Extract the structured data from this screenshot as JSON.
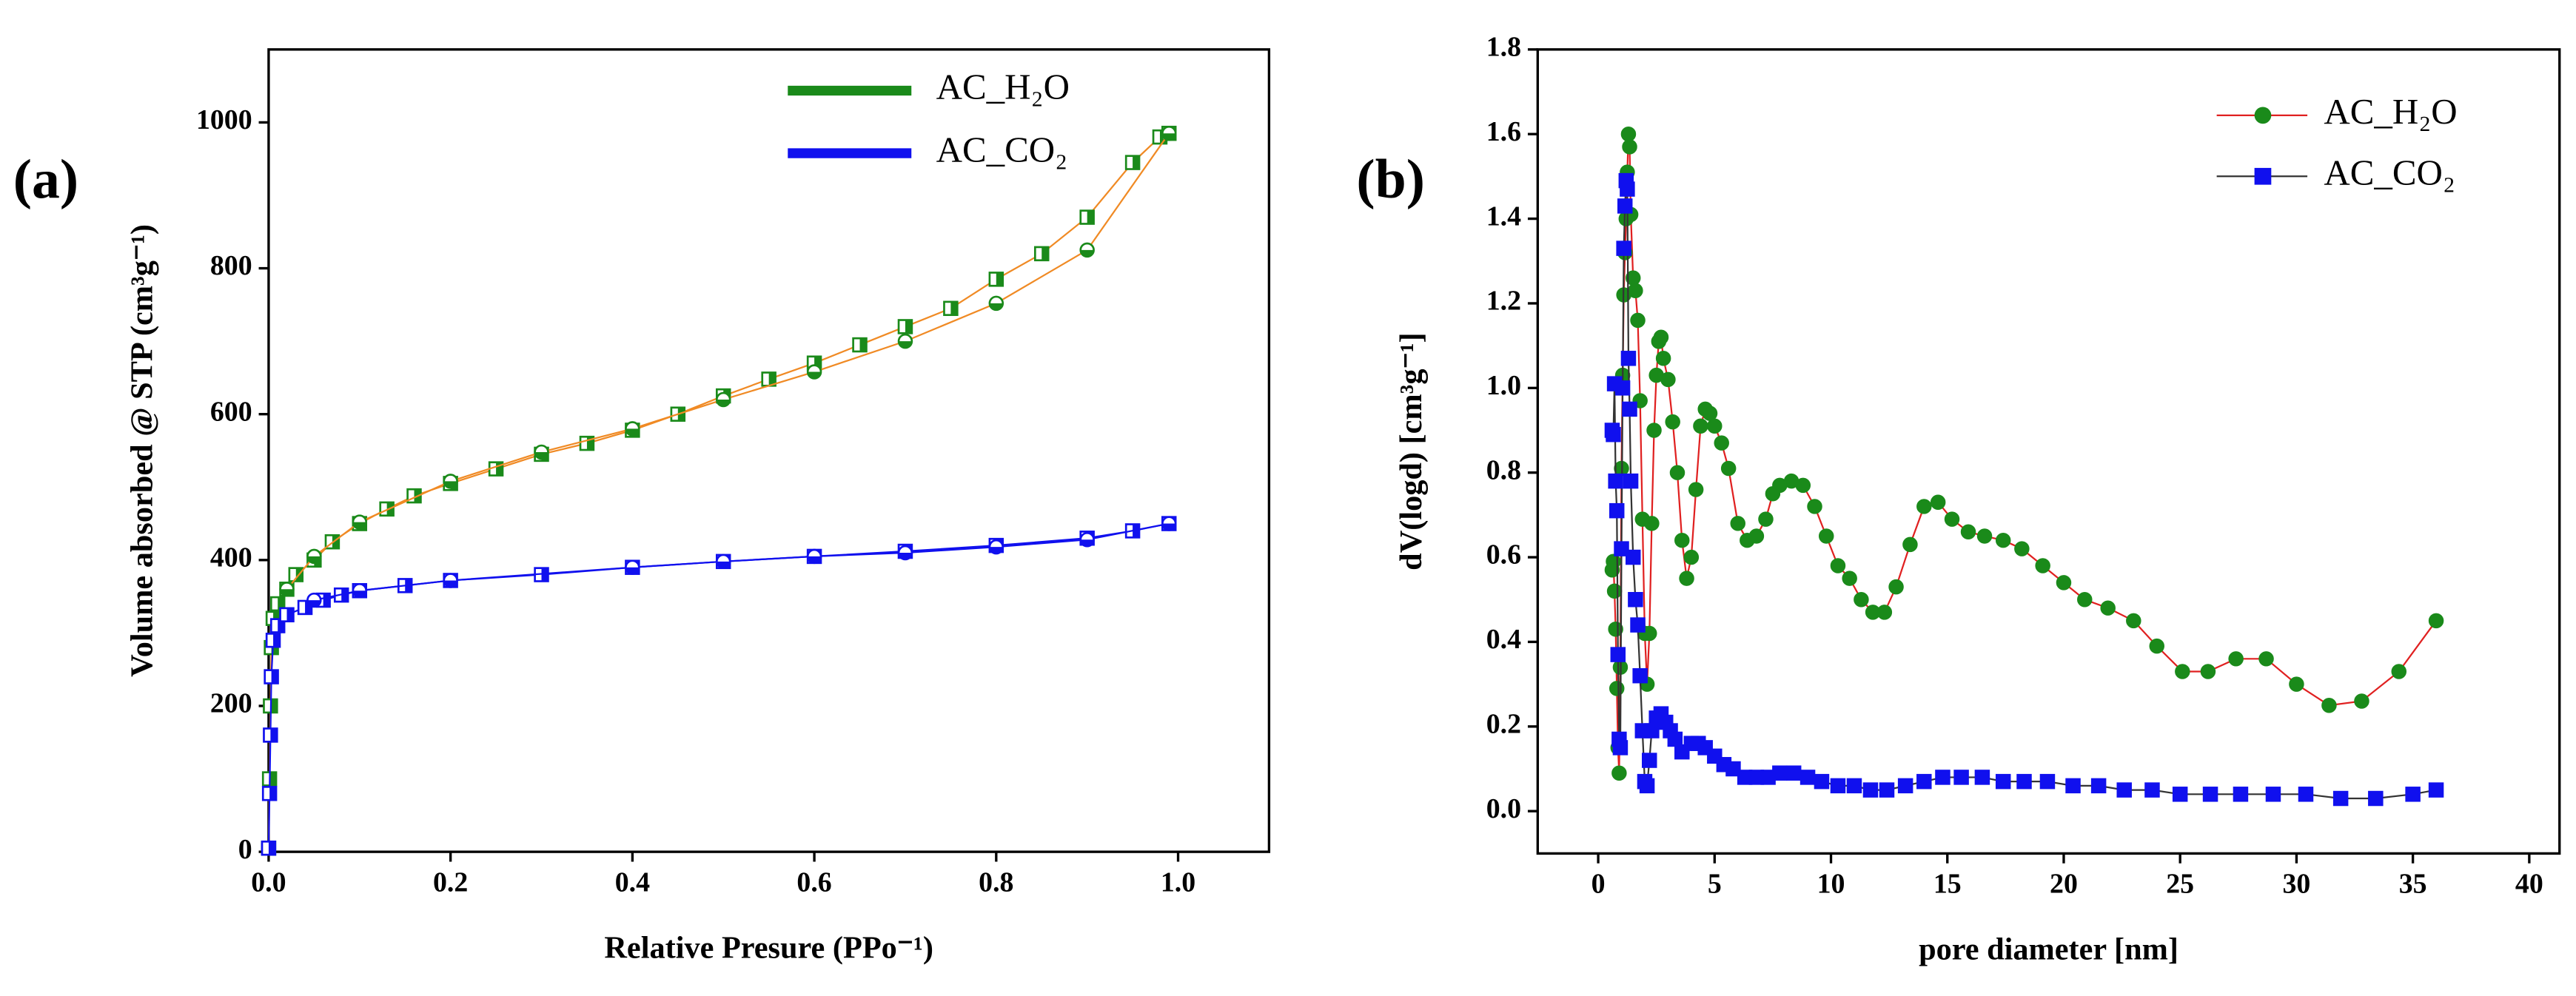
{
  "chart_data": [
    {
      "type": "scatter",
      "panel_label": "(a)",
      "xlabel": "Relative Presure (PPo⁻¹)",
      "ylabel": "Volume absorbed @ STP (cm³g⁻¹)",
      "xlim": [
        0,
        1.1
      ],
      "xticks": [
        {
          "value": 0,
          "label": "0.0"
        },
        0.2,
        0.4,
        0.6,
        0.8,
        {
          "value": 1,
          "label": "1.0"
        }
      ],
      "ylim": [
        0,
        1100
      ],
      "yticks": [
        0,
        200,
        400,
        600,
        800,
        1000
      ],
      "legend_text_color": "#ff00ff",
      "legend": "upper center",
      "series": [
        {
          "name": "AC_H₂O",
          "color": "#1a8a1a",
          "line_color": "#f08a24",
          "marker": "square",
          "x": [
            0,
            0.001,
            0.002,
            0.003,
            0.005,
            0.01,
            0.02,
            0.03,
            0.05,
            0.07,
            0.1,
            0.13,
            0.16,
            0.2,
            0.25,
            0.3,
            0.35,
            0.4,
            0.45,
            0.5,
            0.55,
            0.6,
            0.65,
            0.7,
            0.75,
            0.8,
            0.85,
            0.9,
            0.95,
            0.98,
            0.99
          ],
          "values": [
            5,
            100,
            200,
            280,
            320,
            340,
            360,
            380,
            400,
            425,
            450,
            470,
            488,
            505,
            525,
            545,
            560,
            578,
            600,
            625,
            648,
            670,
            695,
            720,
            745,
            785,
            820,
            870,
            945,
            980,
            985
          ],
          "desorption_x": [
            0.99,
            0.9,
            0.8,
            0.7,
            0.6,
            0.5,
            0.4,
            0.3,
            0.2,
            0.1,
            0.05,
            0.02
          ],
          "desorption_values": [
            985,
            825,
            752,
            700,
            658,
            620,
            580,
            548,
            508,
            452,
            405,
            360
          ]
        },
        {
          "name": "AC_CO₂",
          "color": "#1010ee",
          "line_color": "#1010ee",
          "marker": "square",
          "x": [
            0,
            0.001,
            0.002,
            0.003,
            0.005,
            0.01,
            0.02,
            0.04,
            0.06,
            0.08,
            0.1,
            0.15,
            0.2,
            0.3,
            0.4,
            0.5,
            0.6,
            0.7,
            0.8,
            0.9,
            0.95,
            0.99
          ],
          "values": [
            5,
            80,
            160,
            240,
            290,
            310,
            325,
            335,
            345,
            352,
            358,
            365,
            372,
            380,
            390,
            398,
            405,
            412,
            420,
            430,
            440,
            450
          ],
          "desorption_x": [
            0.99,
            0.9,
            0.8,
            0.7,
            0.6,
            0.5,
            0.4,
            0.2,
            0.1,
            0.05
          ],
          "desorption_values": [
            450,
            428,
            418,
            410,
            405,
            398,
            390,
            372,
            358,
            345
          ]
        }
      ]
    },
    {
      "type": "line",
      "panel_label": "(b)",
      "xlabel": "pore diameter [nm]",
      "ylabel": "dV(logd) [cm³g⁻¹]",
      "xlim": [
        -2.6,
        41.3
      ],
      "xticks": [
        0,
        5,
        10,
        15,
        20,
        25,
        30,
        35,
        40
      ],
      "ylim": [
        -0.1,
        1.8
      ],
      "yticks": [
        {
          "value": 0,
          "label": "0.0"
        },
        0.2,
        0.4,
        0.6,
        0.8,
        {
          "value": 1,
          "label": "1.0"
        },
        1.2,
        1.4,
        1.6,
        1.8
      ],
      "legend_text_color": "#ff00ff",
      "legend": "upper right",
      "series": [
        {
          "name": "AC_H₂O",
          "color": "#1a8a1a",
          "line_color": "#e02020",
          "marker": "circle",
          "x": [
            0.6,
            0.65,
            0.7,
            0.75,
            0.8,
            0.85,
            0.9,
            0.95,
            1.0,
            1.05,
            1.1,
            1.15,
            1.2,
            1.25,
            1.3,
            1.35,
            1.4,
            1.5,
            1.6,
            1.7,
            1.8,
            1.9,
            2.0,
            2.1,
            2.2,
            2.3,
            2.4,
            2.5,
            2.6,
            2.7,
            2.8,
            3.0,
            3.2,
            3.4,
            3.6,
            3.8,
            4.0,
            4.2,
            4.4,
            4.6,
            4.8,
            5.0,
            5.3,
            5.6,
            6.0,
            6.4,
            6.8,
            7.2,
            7.5,
            7.8,
            8.3,
            8.8,
            9.3,
            9.8,
            10.3,
            10.8,
            11.3,
            11.8,
            12.3,
            12.8,
            13.4,
            14.0,
            14.6,
            15.2,
            15.9,
            16.6,
            17.4,
            18.2,
            19.1,
            20.0,
            20.9,
            21.9,
            23.0,
            24.0,
            25.1,
            26.2,
            27.4,
            28.7,
            30.0,
            31.4,
            32.8,
            34.4,
            36.0
          ],
          "values": [
            0.57,
            0.59,
            0.52,
            0.43,
            0.29,
            0.15,
            0.09,
            0.34,
            0.81,
            1.03,
            1.22,
            1.32,
            1.4,
            1.51,
            1.6,
            1.57,
            1.41,
            1.26,
            1.23,
            1.16,
            0.97,
            0.69,
            0.42,
            0.3,
            0.42,
            0.68,
            0.9,
            1.03,
            1.11,
            1.12,
            1.07,
            1.02,
            0.92,
            0.8,
            0.64,
            0.55,
            0.6,
            0.76,
            0.91,
            0.95,
            0.94,
            0.91,
            0.87,
            0.81,
            0.68,
            0.64,
            0.65,
            0.69,
            0.75,
            0.77,
            0.78,
            0.77,
            0.72,
            0.65,
            0.58,
            0.55,
            0.5,
            0.47,
            0.47,
            0.53,
            0.63,
            0.72,
            0.73,
            0.69,
            0.66,
            0.65,
            0.64,
            0.62,
            0.58,
            0.54,
            0.5,
            0.48,
            0.45,
            0.39,
            0.33,
            0.33,
            0.36,
            0.36,
            0.3,
            0.25,
            0.26,
            0.33,
            0.45
          ]
        },
        {
          "name": "AC_CO₂",
          "color": "#1010ee",
          "line_color": "#333333",
          "marker": "square",
          "x": [
            0.6,
            0.65,
            0.7,
            0.75,
            0.8,
            0.85,
            0.9,
            0.95,
            1.0,
            1.05,
            1.1,
            1.15,
            1.2,
            1.25,
            1.3,
            1.35,
            1.4,
            1.5,
            1.6,
            1.7,
            1.8,
            1.9,
            2.0,
            2.1,
            2.2,
            2.3,
            2.5,
            2.7,
            2.9,
            3.1,
            3.3,
            3.6,
            4.0,
            4.3,
            4.6,
            5.0,
            5.4,
            5.8,
            6.3,
            6.8,
            7.3,
            7.8,
            8.4,
            9.0,
            9.6,
            10.3,
            11.0,
            11.7,
            12.4,
            13.2,
            14.0,
            14.8,
            15.6,
            16.5,
            17.4,
            18.3,
            19.3,
            20.4,
            21.5,
            22.6,
            23.8,
            25.0,
            26.3,
            27.6,
            29.0,
            30.4,
            31.9,
            33.4,
            35.0,
            36.0
          ],
          "values": [
            0.9,
            0.89,
            1.01,
            0.78,
            0.71,
            0.37,
            0.17,
            0.15,
            0.62,
            1.0,
            1.33,
            1.43,
            1.49,
            1.47,
            1.07,
            0.95,
            0.78,
            0.6,
            0.5,
            0.44,
            0.32,
            0.19,
            0.07,
            0.06,
            0.12,
            0.19,
            0.22,
            0.23,
            0.21,
            0.19,
            0.17,
            0.14,
            0.16,
            0.16,
            0.15,
            0.13,
            0.11,
            0.1,
            0.08,
            0.08,
            0.08,
            0.09,
            0.09,
            0.08,
            0.07,
            0.06,
            0.06,
            0.05,
            0.05,
            0.06,
            0.07,
            0.08,
            0.08,
            0.08,
            0.07,
            0.07,
            0.07,
            0.06,
            0.06,
            0.05,
            0.05,
            0.04,
            0.04,
            0.04,
            0.04,
            0.04,
            0.03,
            0.03,
            0.04,
            0.05
          ]
        }
      ]
    }
  ]
}
